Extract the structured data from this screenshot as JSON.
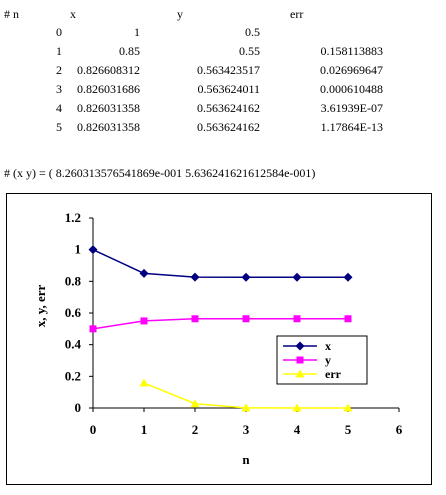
{
  "table": {
    "headers": [
      "# n",
      "x",
      "y",
      "err"
    ],
    "rows": [
      [
        "0",
        "1",
        "0.5",
        ""
      ],
      [
        "1",
        "0.85",
        "0.55",
        "0.158113883"
      ],
      [
        "2",
        "0.826608312",
        "0.563423517",
        "0.026969647"
      ],
      [
        "3",
        "0.826031686",
        "0.563624011",
        "0.000610488"
      ],
      [
        "4",
        "0.826031358",
        "0.563624162",
        "3.61939E-07"
      ],
      [
        "5",
        "0.826031358",
        "0.563624162",
        "1.17864E-13"
      ]
    ]
  },
  "result_line": "# (x y) = ( 8.260313576541869e-001  5.636241621612584e-001)",
  "chart_data": {
    "type": "line",
    "xlabel": "n",
    "ylabel": "x, y, err",
    "xlim": [
      0,
      6
    ],
    "ylim": [
      0,
      1.2
    ],
    "x_ticks": [
      "0",
      "1",
      "2",
      "3",
      "4",
      "5",
      "6"
    ],
    "y_ticks": [
      "0",
      "0.2",
      "0.4",
      "0.6",
      "0.8",
      "1",
      "1.2"
    ],
    "grid": false,
    "legend_position": "bottom-right",
    "series": [
      {
        "name": "x",
        "color": "#000080",
        "marker": "diamond",
        "x": [
          0,
          1,
          2,
          3,
          4,
          5
        ],
        "values": [
          1,
          0.85,
          0.826608312,
          0.826031686,
          0.826031358,
          0.826031358
        ]
      },
      {
        "name": "y",
        "color": "#ff00ff",
        "marker": "square",
        "x": [
          0,
          1,
          2,
          3,
          4,
          5
        ],
        "values": [
          0.5,
          0.55,
          0.563423517,
          0.563624011,
          0.563624162,
          0.563624162
        ]
      },
      {
        "name": "err",
        "color": "#ffff00",
        "marker": "triangle",
        "x": [
          1,
          2,
          3,
          4,
          5
        ],
        "values": [
          0.158113883,
          0.026969647,
          0.000610488,
          3.61939e-07,
          1.17864e-13
        ]
      }
    ]
  }
}
